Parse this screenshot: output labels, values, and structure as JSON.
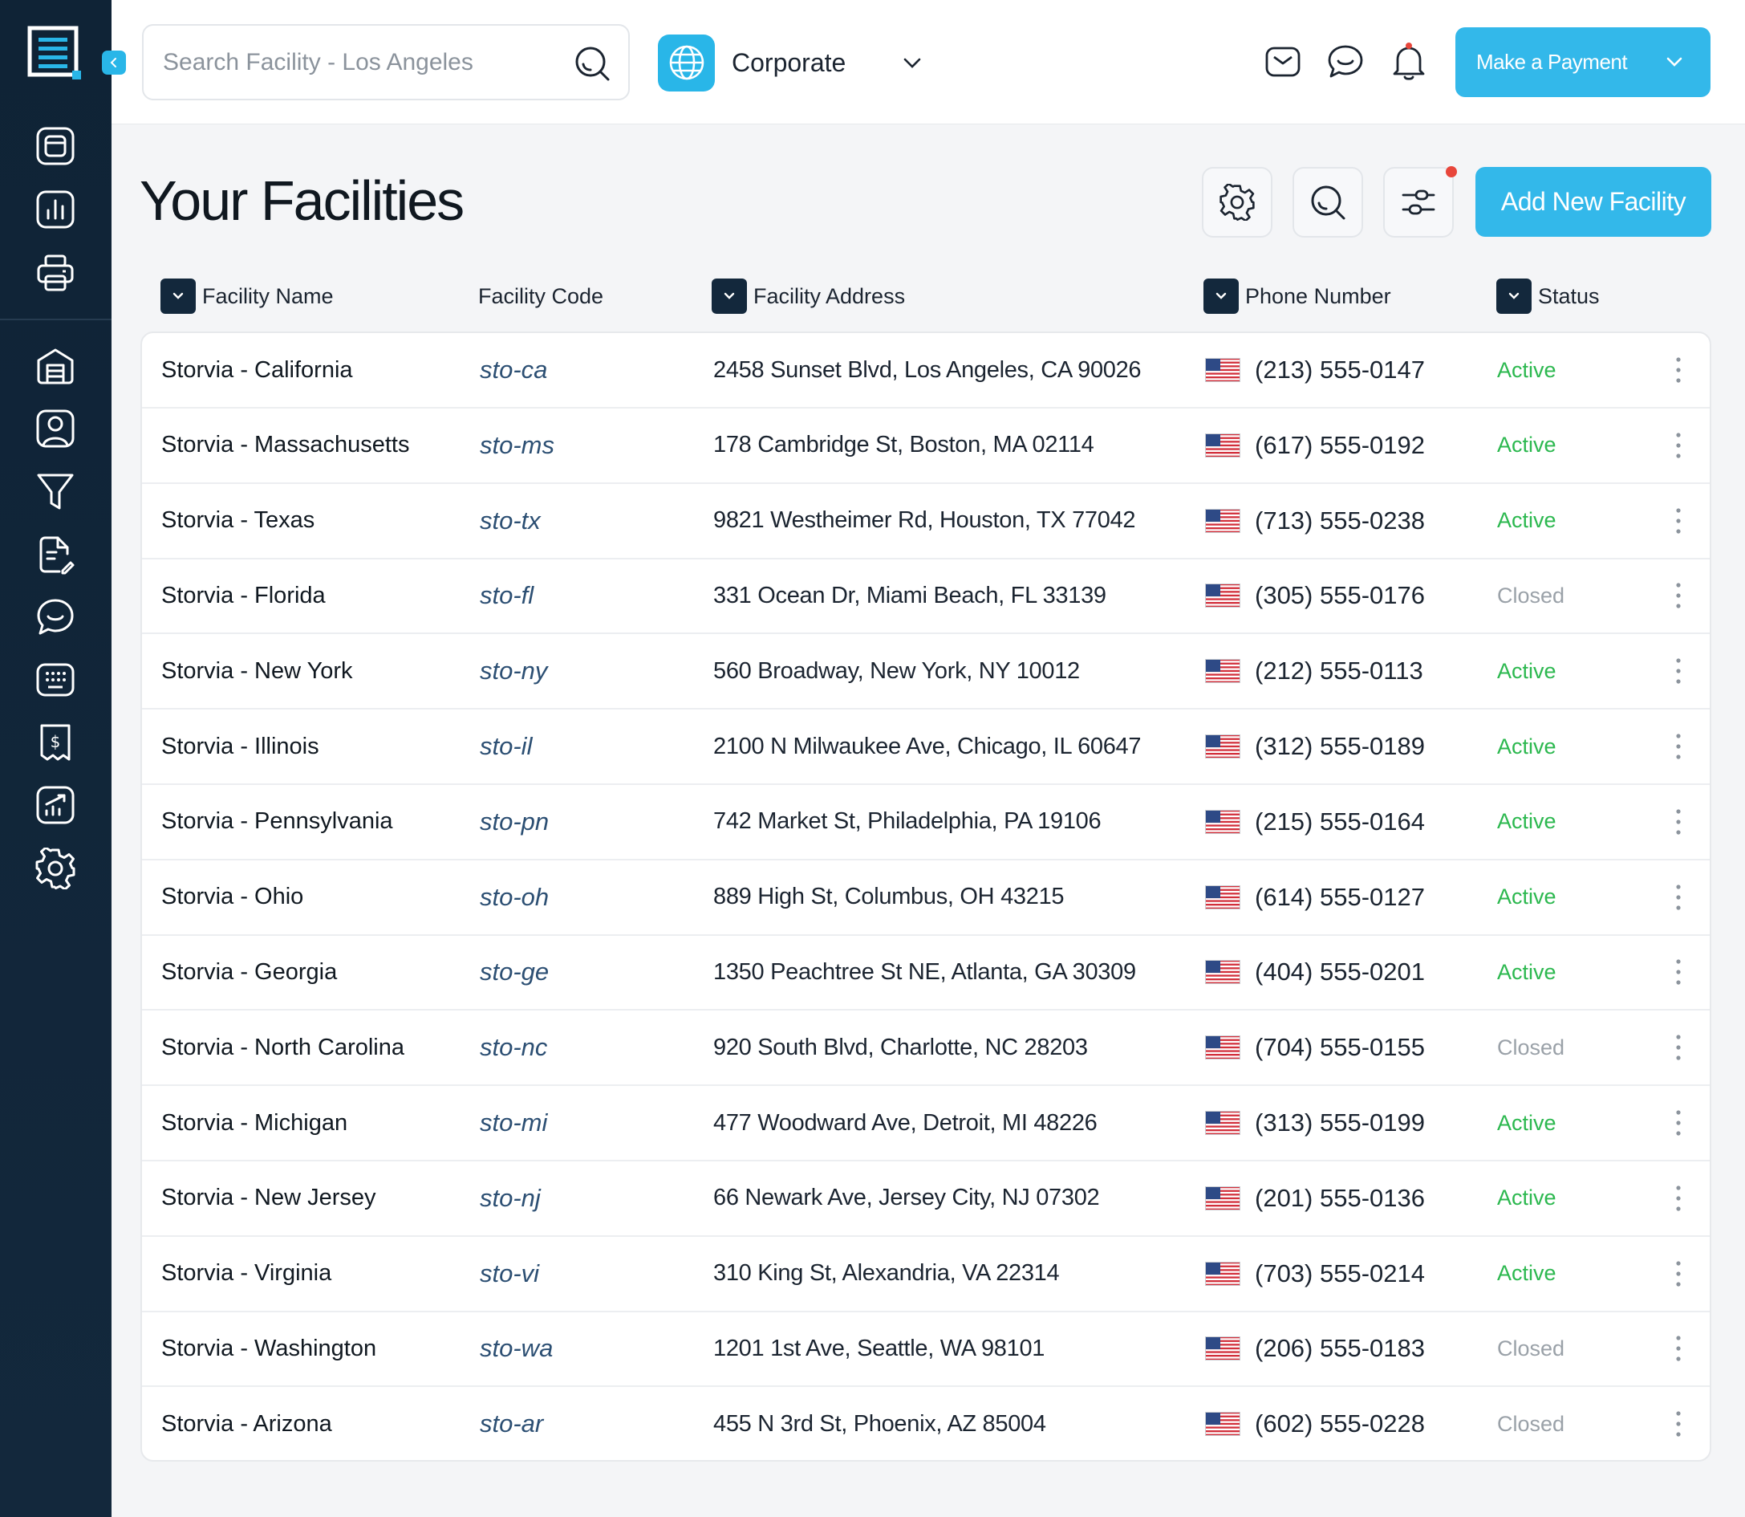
{
  "search": {
    "placeholder": "Search Facility - Los Angeles"
  },
  "org_selector": {
    "label": "Corporate"
  },
  "header": {
    "payment_button": "Make a Payment"
  },
  "page": {
    "title": "Your Facilities",
    "add_button": "Add New Facility"
  },
  "table": {
    "headers": {
      "name": "Facility Name",
      "code": "Facility Code",
      "address": "Facility Address",
      "phone": "Phone Number",
      "status": "Status"
    },
    "rows": [
      {
        "name": "Storvia - California",
        "code": "sto-ca",
        "address": "2458 Sunset Blvd, Los Angeles, CA 90026",
        "phone": "(213) 555-0147",
        "status": "Active"
      },
      {
        "name": "Storvia - Massachusetts",
        "code": "sto-ms",
        "address": "178 Cambridge St, Boston, MA 02114",
        "phone": "(617) 555-0192",
        "status": "Active"
      },
      {
        "name": "Storvia - Texas",
        "code": "sto-tx",
        "address": "9821 Westheimer Rd, Houston, TX 77042",
        "phone": "(713) 555-0238",
        "status": "Active"
      },
      {
        "name": "Storvia - Florida",
        "code": "sto-fl",
        "address": "331 Ocean Dr, Miami Beach, FL 33139",
        "phone": "(305) 555-0176",
        "status": "Closed"
      },
      {
        "name": "Storvia - New York",
        "code": "sto-ny",
        "address": "560 Broadway, New York, NY 10012",
        "phone": "(212) 555-0113",
        "status": "Active"
      },
      {
        "name": "Storvia - Illinois",
        "code": "sto-il",
        "address": "2100 N Milwaukee Ave, Chicago, IL 60647",
        "phone": "(312) 555-0189",
        "status": "Active"
      },
      {
        "name": "Storvia - Pennsylvania",
        "code": "sto-pn",
        "address": "742 Market St, Philadelphia, PA 19106",
        "phone": "(215) 555-0164",
        "status": "Active"
      },
      {
        "name": "Storvia - Ohio",
        "code": "sto-oh",
        "address": "889 High St, Columbus, OH 43215",
        "phone": "(614) 555-0127",
        "status": "Active"
      },
      {
        "name": "Storvia - Georgia",
        "code": "sto-ge",
        "address": "1350 Peachtree St NE, Atlanta, GA 30309",
        "phone": "(404) 555-0201",
        "status": "Active"
      },
      {
        "name": "Storvia - North Carolina",
        "code": "sto-nc",
        "address": "920 South Blvd, Charlotte, NC 28203",
        "phone": "(704) 555-0155",
        "status": "Closed"
      },
      {
        "name": "Storvia - Michigan",
        "code": "sto-mi",
        "address": "477 Woodward Ave, Detroit, MI 48226",
        "phone": "(313) 555-0199",
        "status": "Active"
      },
      {
        "name": "Storvia - New Jersey",
        "code": "sto-nj",
        "address": "66 Newark Ave, Jersey City, NJ 07302",
        "phone": "(201) 555-0136",
        "status": "Active"
      },
      {
        "name": "Storvia - Virginia",
        "code": "sto-vi",
        "address": "310 King St, Alexandria, VA 22314",
        "phone": "(703) 555-0214",
        "status": "Active"
      },
      {
        "name": "Storvia - Washington",
        "code": "sto-wa",
        "address": "1201 1st Ave, Seattle, WA 98101",
        "phone": "(206) 555-0183",
        "status": "Closed"
      },
      {
        "name": "Storvia - Arizona",
        "code": "sto-ar",
        "address": "455 N 3rd St, Phoenix, AZ 85004",
        "phone": "(602) 555-0228",
        "status": "Closed"
      }
    ]
  },
  "icons": {
    "sidebar": [
      "dashboard-icon",
      "bar-chart-icon",
      "printer-icon",
      "building-icon",
      "user-profile-icon",
      "filter-icon",
      "document-edit-icon",
      "chat-icon",
      "keypad-icon",
      "billing-icon",
      "analytics-icon",
      "settings-icon"
    ],
    "row_flag": "us-flag-icon"
  },
  "colors": {
    "accent": "#33b8ea",
    "sidebar": "#13283c",
    "active": "#2cb84f",
    "closed": "#9aa1a8",
    "notification": "#e8463b"
  }
}
